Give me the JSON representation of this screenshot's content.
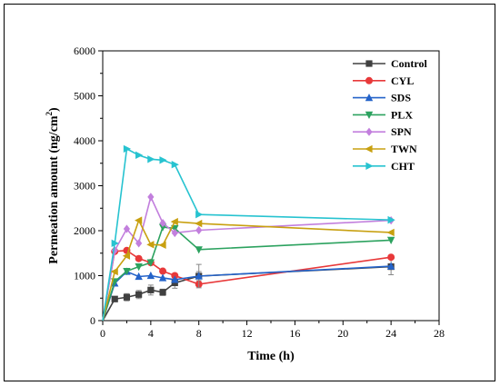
{
  "chart_data": {
    "type": "line",
    "xlabel": "Time (h)",
    "ylabel": "Permeation amount (ng/cm",
    "ylabel_sup": "2",
    "ylabel_close": ")",
    "xlim": [
      0,
      28
    ],
    "ylim": [
      0,
      6000
    ],
    "xticks": [
      0,
      4,
      8,
      12,
      16,
      20,
      24,
      28
    ],
    "yticks": [
      0,
      1000,
      2000,
      3000,
      4000,
      5000,
      6000
    ],
    "grid": false,
    "legend_position": "top-right",
    "series": [
      {
        "name": "Control",
        "color": "#404040",
        "marker": "square",
        "x": [
          0,
          1,
          2,
          3,
          4,
          5,
          6,
          8,
          24
        ],
        "y": [
          0,
          480,
          520,
          580,
          680,
          630,
          840,
          990,
          1200
        ],
        "err": [
          0,
          40,
          80,
          90,
          110,
          70,
          120,
          100,
          180
        ]
      },
      {
        "name": "CYL",
        "color": "#e8393a",
        "marker": "circle",
        "x": [
          0,
          1,
          2,
          3,
          4,
          5,
          6,
          8,
          24
        ],
        "y": [
          0,
          1540,
          1560,
          1380,
          1290,
          1100,
          1000,
          810,
          1410
        ],
        "err": [
          0,
          0,
          0,
          0,
          0,
          0,
          0,
          0,
          0
        ]
      },
      {
        "name": "SDS",
        "color": "#2463c9",
        "marker": "triangle-up",
        "x": [
          0,
          1,
          2,
          3,
          4,
          5,
          6,
          8,
          24
        ],
        "y": [
          0,
          830,
          1090,
          980,
          1000,
          950,
          910,
          990,
          1210
        ],
        "err": [
          0,
          0,
          0,
          0,
          0,
          0,
          0,
          260,
          0
        ]
      },
      {
        "name": "PLX",
        "color": "#2ca25f",
        "marker": "triangle-down",
        "x": [
          0,
          1,
          2,
          3,
          4,
          5,
          6,
          8,
          24
        ],
        "y": [
          0,
          870,
          1100,
          1200,
          1290,
          2080,
          2050,
          1580,
          1790
        ],
        "err": [
          0,
          0,
          0,
          0,
          0,
          0,
          0,
          0,
          0
        ]
      },
      {
        "name": "SPN",
        "color": "#c27fdd",
        "marker": "diamond",
        "x": [
          0,
          1,
          2,
          3,
          4,
          5,
          6,
          8,
          24
        ],
        "y": [
          0,
          1560,
          2040,
          1720,
          2750,
          2170,
          1950,
          2010,
          2230
        ],
        "err": [
          0,
          0,
          0,
          0,
          0,
          0,
          0,
          0,
          0
        ]
      },
      {
        "name": "TWN",
        "color": "#c8a010",
        "marker": "triangle-left",
        "x": [
          0,
          1,
          2,
          3,
          4,
          5,
          6,
          8,
          24
        ],
        "y": [
          0,
          1090,
          1440,
          2230,
          1690,
          1680,
          2200,
          2160,
          1960
        ],
        "err": [
          0,
          0,
          0,
          0,
          0,
          0,
          0,
          0,
          0
        ]
      },
      {
        "name": "CHT",
        "color": "#27c3d0",
        "marker": "triangle-right",
        "x": [
          0,
          1,
          2,
          3,
          4,
          5,
          6,
          8,
          24
        ],
        "y": [
          0,
          1720,
          3820,
          3680,
          3590,
          3570,
          3470,
          2360,
          2240
        ],
        "err": [
          0,
          0,
          0,
          0,
          0,
          0,
          0,
          0,
          0
        ]
      }
    ]
  }
}
